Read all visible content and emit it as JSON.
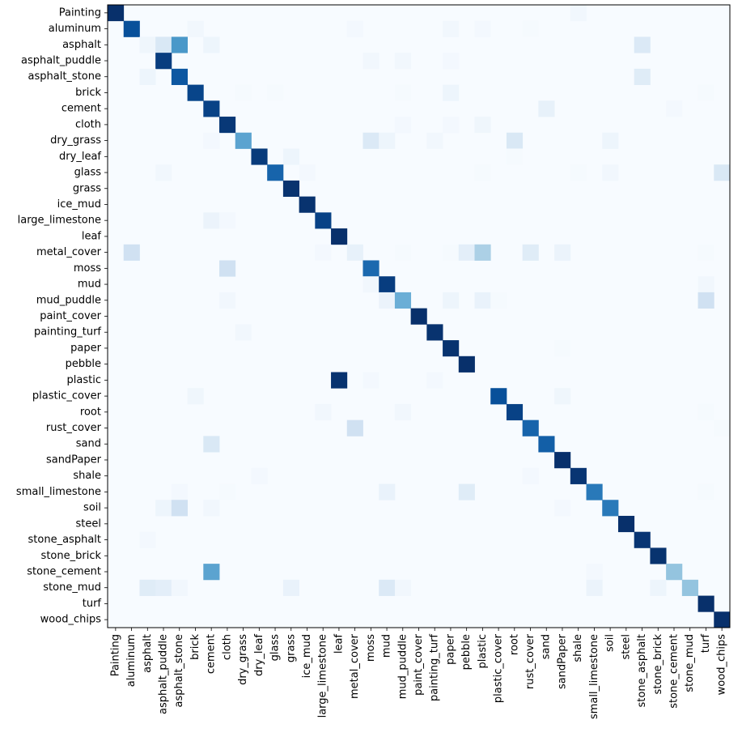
{
  "chart_data": {
    "type": "heatmap",
    "title": "",
    "xlabel": "",
    "ylabel": "",
    "colormap": "Blues",
    "value_range": [
      0,
      1
    ],
    "labels": [
      "Painting",
      "aluminum",
      "asphalt",
      "asphalt_puddle",
      "asphalt_stone",
      "brick",
      "cement",
      "cloth",
      "dry_grass",
      "dry_leaf",
      "glass",
      "grass",
      "ice_mud",
      "large_limestone",
      "leaf",
      "metal_cover",
      "moss",
      "mud",
      "mud_puddle",
      "paint_cover",
      "painting_turf",
      "paper",
      "pebble",
      "plastic",
      "plastic_cover",
      "root",
      "rust_cover",
      "sand",
      "sandPaper",
      "shale",
      "small_limestone",
      "soil",
      "steel",
      "stone_asphalt",
      "stone_brick",
      "stone_cement",
      "stone_mud",
      "turf",
      "wood_chips"
    ],
    "cells": [
      [
        0,
        0,
        1.0
      ],
      [
        0,
        29,
        0.03
      ],
      [
        1,
        1,
        0.88
      ],
      [
        1,
        5,
        0.03
      ],
      [
        1,
        15,
        0.02
      ],
      [
        1,
        21,
        0.03
      ],
      [
        1,
        23,
        0.02
      ],
      [
        1,
        26,
        0.01
      ],
      [
        2,
        2,
        0.04
      ],
      [
        2,
        3,
        0.15
      ],
      [
        2,
        4,
        0.6
      ],
      [
        2,
        6,
        0.05
      ],
      [
        2,
        33,
        0.14
      ],
      [
        3,
        3,
        0.95
      ],
      [
        3,
        16,
        0.03
      ],
      [
        3,
        18,
        0.03
      ],
      [
        3,
        21,
        0.02
      ],
      [
        4,
        2,
        0.05
      ],
      [
        4,
        4,
        0.85
      ],
      [
        4,
        33,
        0.12
      ],
      [
        5,
        5,
        0.92
      ],
      [
        5,
        8,
        0.01
      ],
      [
        5,
        10,
        0.01
      ],
      [
        5,
        18,
        0.01
      ],
      [
        5,
        21,
        0.05
      ],
      [
        5,
        37,
        0.01
      ],
      [
        6,
        6,
        0.93
      ],
      [
        6,
        27,
        0.08
      ],
      [
        6,
        35,
        0.02
      ],
      [
        7,
        7,
        0.97
      ],
      [
        7,
        18,
        0.02
      ],
      [
        7,
        21,
        0.02
      ],
      [
        7,
        23,
        0.04
      ],
      [
        8,
        6,
        0.02
      ],
      [
        8,
        8,
        0.55
      ],
      [
        8,
        16,
        0.14
      ],
      [
        8,
        17,
        0.05
      ],
      [
        8,
        20,
        0.03
      ],
      [
        8,
        25,
        0.15
      ],
      [
        8,
        31,
        0.05
      ],
      [
        9,
        9,
        0.96
      ],
      [
        9,
        11,
        0.05
      ],
      [
        9,
        25,
        0.01
      ],
      [
        10,
        3,
        0.03
      ],
      [
        10,
        10,
        0.8
      ],
      [
        10,
        12,
        0.02
      ],
      [
        10,
        23,
        0.01
      ],
      [
        10,
        29,
        0.01
      ],
      [
        10,
        31,
        0.03
      ],
      [
        10,
        38,
        0.15
      ],
      [
        11,
        11,
        0.99
      ],
      [
        12,
        12,
        0.99
      ],
      [
        13,
        6,
        0.06
      ],
      [
        13,
        7,
        0.02
      ],
      [
        13,
        13,
        0.93
      ],
      [
        14,
        14,
        1.0
      ],
      [
        15,
        1,
        0.2
      ],
      [
        15,
        13,
        0.02
      ],
      [
        15,
        15,
        0.08
      ],
      [
        15,
        18,
        0.01
      ],
      [
        15,
        21,
        0.01
      ],
      [
        15,
        22,
        0.1
      ],
      [
        15,
        23,
        0.33
      ],
      [
        15,
        26,
        0.12
      ],
      [
        15,
        28,
        0.06
      ],
      [
        15,
        37,
        0.01
      ],
      [
        16,
        7,
        0.2
      ],
      [
        16,
        16,
        0.78
      ],
      [
        17,
        16,
        0.03
      ],
      [
        17,
        17,
        0.95
      ],
      [
        17,
        37,
        0.03
      ],
      [
        18,
        7,
        0.03
      ],
      [
        18,
        17,
        0.06
      ],
      [
        18,
        18,
        0.5
      ],
      [
        18,
        21,
        0.05
      ],
      [
        18,
        23,
        0.07
      ],
      [
        18,
        24,
        0.01
      ],
      [
        18,
        37,
        0.2
      ],
      [
        19,
        19,
        1.0
      ],
      [
        20,
        8,
        0.03
      ],
      [
        20,
        20,
        0.99
      ],
      [
        21,
        21,
        0.99
      ],
      [
        21,
        28,
        0.01
      ],
      [
        22,
        22,
        1.0
      ],
      [
        23,
        14,
        0.99
      ],
      [
        23,
        16,
        0.02
      ],
      [
        23,
        20,
        0.02
      ],
      [
        24,
        5,
        0.04
      ],
      [
        24,
        24,
        0.88
      ],
      [
        24,
        28,
        0.04
      ],
      [
        25,
        13,
        0.03
      ],
      [
        25,
        18,
        0.03
      ],
      [
        25,
        25,
        0.93
      ],
      [
        25,
        37,
        0.01
      ],
      [
        26,
        15,
        0.2
      ],
      [
        26,
        26,
        0.8
      ],
      [
        26,
        38,
        0.01
      ],
      [
        27,
        6,
        0.15
      ],
      [
        27,
        27,
        0.82
      ],
      [
        28,
        28,
        1.0
      ],
      [
        29,
        9,
        0.02
      ],
      [
        29,
        26,
        0.02
      ],
      [
        29,
        29,
        0.98
      ],
      [
        30,
        4,
        0.02
      ],
      [
        30,
        7,
        0.01
      ],
      [
        30,
        17,
        0.07
      ],
      [
        30,
        22,
        0.12
      ],
      [
        30,
        30,
        0.72
      ],
      [
        30,
        37,
        0.01
      ],
      [
        31,
        3,
        0.05
      ],
      [
        31,
        4,
        0.2
      ],
      [
        31,
        6,
        0.03
      ],
      [
        31,
        28,
        0.02
      ],
      [
        31,
        31,
        0.72
      ],
      [
        32,
        32,
        1.0
      ],
      [
        33,
        2,
        0.02
      ],
      [
        33,
        33,
        0.98
      ],
      [
        34,
        34,
        0.99
      ],
      [
        35,
        6,
        0.55
      ],
      [
        35,
        30,
        0.02
      ],
      [
        35,
        35,
        0.4
      ],
      [
        36,
        2,
        0.12
      ],
      [
        36,
        3,
        0.1
      ],
      [
        36,
        4,
        0.03
      ],
      [
        36,
        11,
        0.07
      ],
      [
        36,
        17,
        0.14
      ],
      [
        36,
        18,
        0.03
      ],
      [
        36,
        30,
        0.06
      ],
      [
        36,
        34,
        0.05
      ],
      [
        36,
        36,
        0.4
      ],
      [
        37,
        37,
        1.0
      ],
      [
        38,
        38,
        1.0
      ]
    ]
  }
}
